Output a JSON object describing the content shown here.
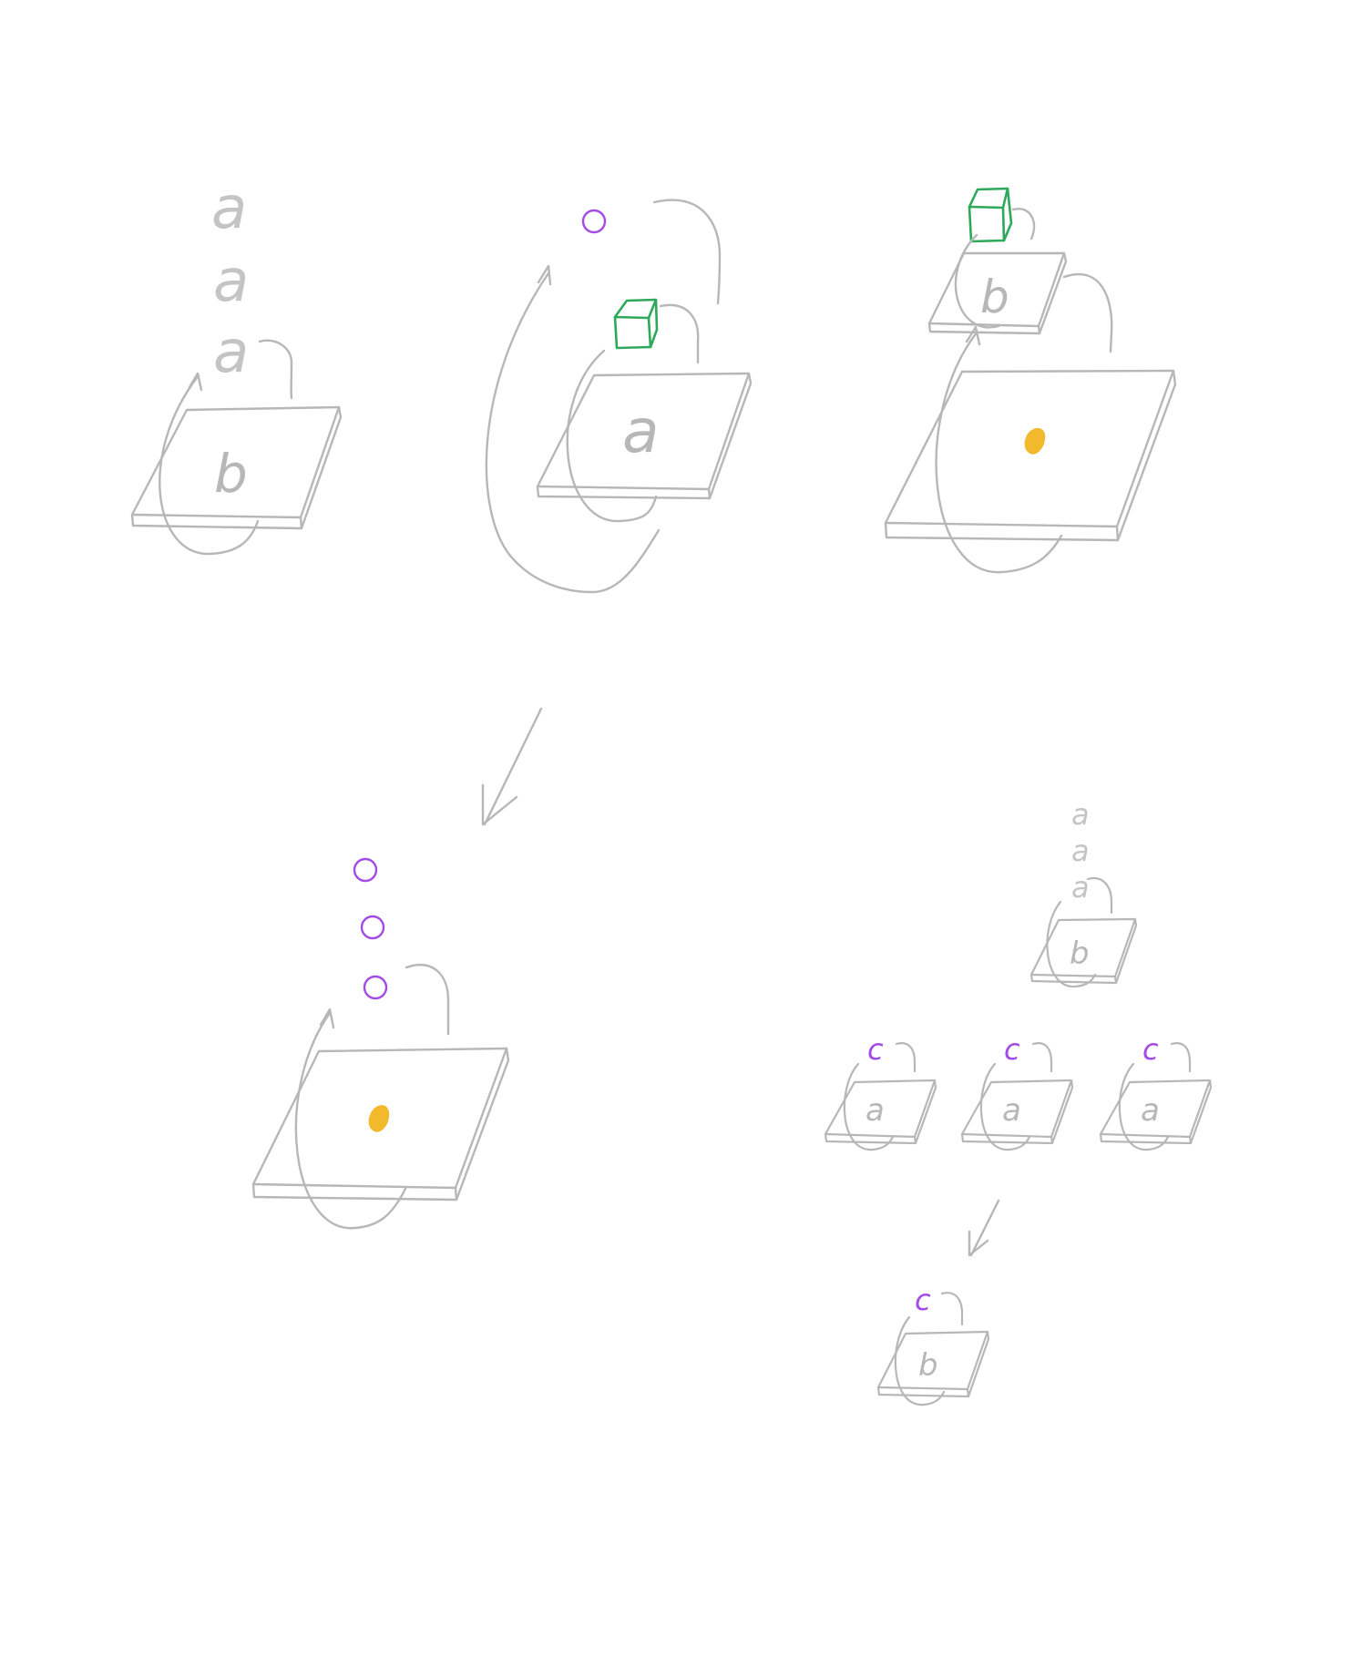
{
  "colors": {
    "ink": "#b7b7b7",
    "ink_light": "#c4c4c4",
    "cube": "#2ea85a",
    "dot_yellow": "#f3b92c",
    "purple": "#a24be6"
  },
  "glyphs": {
    "a": "a",
    "b": "b",
    "c": "c"
  },
  "icons": [
    "plate-icon",
    "loop-arrow-icon",
    "cube-icon",
    "yellow-dot-icon",
    "purple-circle-icon",
    "arrow-down-left-icon"
  ]
}
